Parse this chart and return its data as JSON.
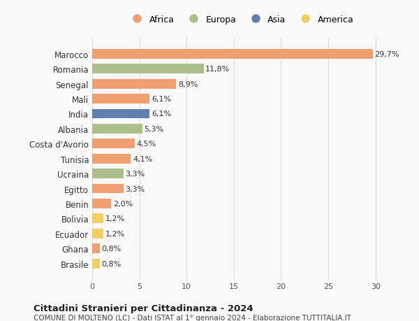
{
  "categories": [
    "Brasile",
    "Ghana",
    "Ecuador",
    "Bolivia",
    "Benin",
    "Egitto",
    "Ucraina",
    "Tunisia",
    "Costa d'Avorio",
    "Albania",
    "India",
    "Mali",
    "Senegal",
    "Romania",
    "Marocco"
  ],
  "values": [
    0.8,
    0.8,
    1.2,
    1.2,
    2.0,
    3.3,
    3.3,
    4.1,
    4.5,
    5.3,
    6.1,
    6.1,
    8.9,
    11.8,
    29.7
  ],
  "labels": [
    "0,8%",
    "0,8%",
    "1,2%",
    "1,2%",
    "2,0%",
    "3,3%",
    "3,3%",
    "4,1%",
    "4,5%",
    "5,3%",
    "6,1%",
    "6,1%",
    "8,9%",
    "11,8%",
    "29,7%"
  ],
  "continents": [
    "America",
    "Africa",
    "America",
    "America",
    "Africa",
    "Africa",
    "Europa",
    "Africa",
    "Africa",
    "Europa",
    "Asia",
    "Africa",
    "Africa",
    "Europa",
    "Africa"
  ],
  "colors": {
    "Africa": "#F0A070",
    "Europa": "#ADBF8A",
    "Asia": "#6080B0",
    "America": "#F0D060"
  },
  "legend_order": [
    "Africa",
    "Europa",
    "Asia",
    "America"
  ],
  "legend_colors": {
    "Africa": "#F0A070",
    "Europa": "#ADBF8A",
    "Asia": "#6080B0",
    "America": "#F0D060"
  },
  "title": "Cittadini Stranieri per Cittadinanza - 2024",
  "subtitle": "COMUNE DI MOLTENO (LC) - Dati ISTAT al 1° gennaio 2024 - Elaborazione TUTTITALIA.IT",
  "xlim": [
    0,
    31.5
  ],
  "xticks": [
    0,
    5,
    10,
    15,
    20,
    25,
    30
  ],
  "background_color": "#f9f9f9",
  "grid_color": "#dddddd"
}
